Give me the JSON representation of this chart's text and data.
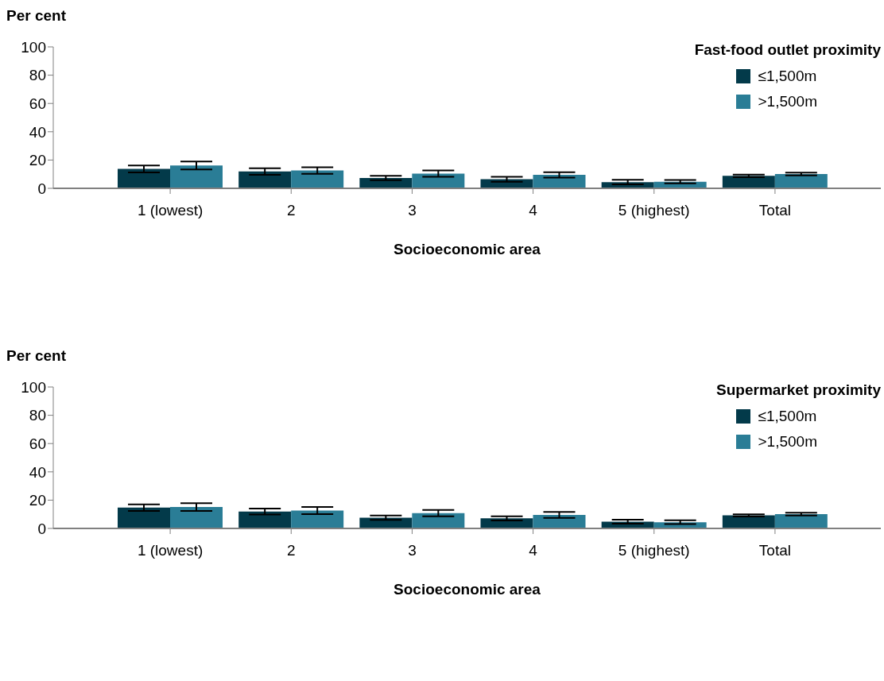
{
  "chart_data": [
    {
      "type": "bar",
      "ylabel": "Per cent",
      "xlabel": "Socioeconomic area",
      "legend_title": "Fast-food outlet proximity",
      "legend": "top right",
      "grid": false,
      "categories": [
        "1 (lowest)",
        "2",
        "3",
        "4",
        "5 (highest)",
        "Total"
      ],
      "ylim": [
        0,
        100
      ],
      "yticks": [
        0,
        20,
        40,
        60,
        80,
        100
      ],
      "series": [
        {
          "name": "≤1,500m",
          "color": "#033a4a",
          "values": [
            13.7,
            11.9,
            7.3,
            6.4,
            4.4,
            8.8
          ],
          "errors": [
            2.4,
            2.3,
            1.6,
            1.7,
            1.6,
            0.9
          ]
        },
        {
          "name": ">1,500m",
          "color": "#2a7d96",
          "values": [
            16.2,
            12.6,
            10.4,
            9.5,
            4.7,
            10.1
          ],
          "errors": [
            2.8,
            2.3,
            2.2,
            1.9,
            1.2,
            1.0
          ]
        }
      ]
    },
    {
      "type": "bar",
      "ylabel": "Per cent",
      "xlabel": "Socioeconomic area",
      "legend_title": "Supermarket proximity",
      "legend": "top right",
      "grid": false,
      "categories": [
        "1 (lowest)",
        "2",
        "3",
        "4",
        "5 (highest)",
        "Total"
      ],
      "ylim": [
        0,
        100
      ],
      "yticks": [
        0,
        20,
        40,
        60,
        80,
        100
      ],
      "series": [
        {
          "name": "≤1,500m",
          "color": "#033a4a",
          "values": [
            14.7,
            11.9,
            7.6,
            7.1,
            4.8,
            9.2
          ],
          "errors": [
            2.3,
            2.1,
            1.5,
            1.5,
            1.4,
            0.8
          ]
        },
        {
          "name": ">1,500m",
          "color": "#2a7d96",
          "values": [
            15.1,
            12.6,
            10.8,
            9.5,
            4.4,
            10.1
          ],
          "errors": [
            2.8,
            2.5,
            2.3,
            2.1,
            1.3,
            1.0
          ]
        }
      ]
    }
  ]
}
